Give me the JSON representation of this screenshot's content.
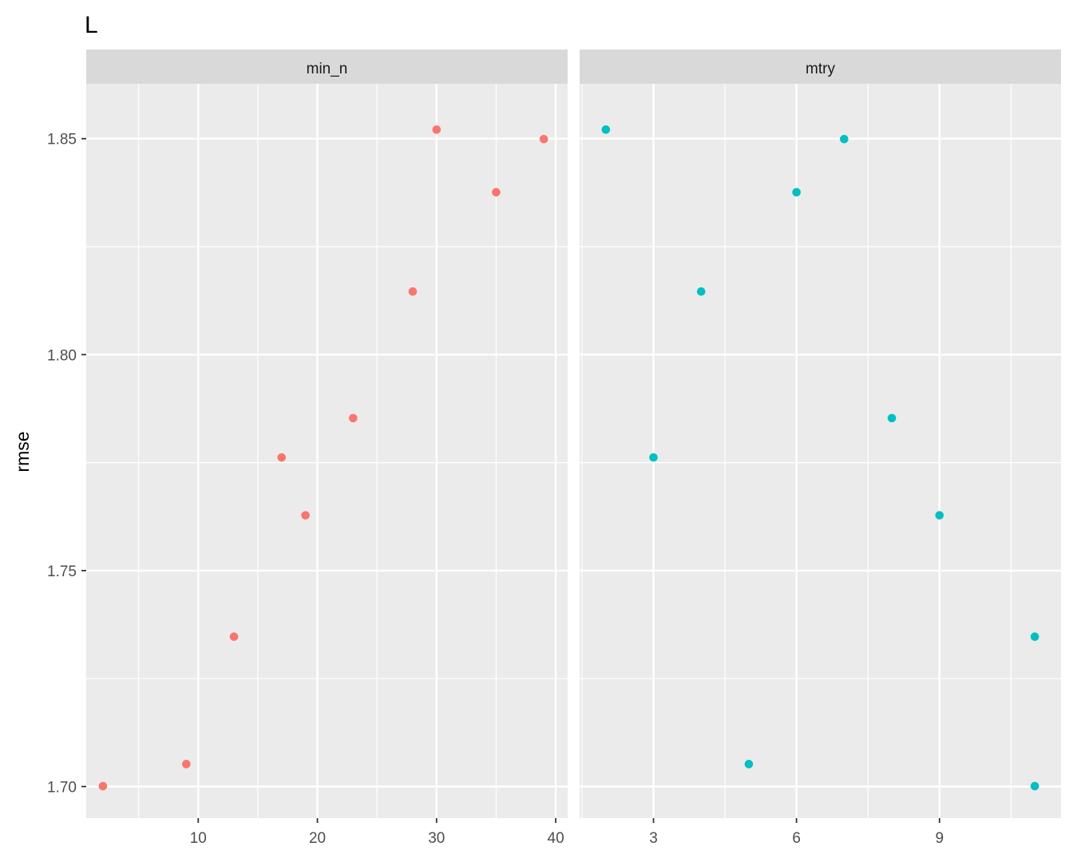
{
  "chart_data": {
    "type": "scatter",
    "title": "L",
    "ylabel": "rmse",
    "xlabel": "",
    "y_ticks": [
      "1.70",
      "1.75",
      "1.80",
      "1.85"
    ],
    "ylim": [
      1.6927,
      1.8627
    ],
    "grid": true,
    "legend": "none",
    "panels": [
      {
        "strip": "min_n",
        "color": "#F8766D",
        "xlim": [
          0.6,
          41.0
        ],
        "x_ticks": [
          10,
          20,
          30,
          40
        ],
        "points": [
          {
            "x": 2,
            "y": 1.7001
          },
          {
            "x": 9,
            "y": 1.7052
          },
          {
            "x": 13,
            "y": 1.7347
          },
          {
            "x": 17,
            "y": 1.7762
          },
          {
            "x": 19,
            "y": 1.7628
          },
          {
            "x": 23,
            "y": 1.7853
          },
          {
            "x": 28,
            "y": 1.8146
          },
          {
            "x": 30,
            "y": 1.8521
          },
          {
            "x": 35,
            "y": 1.8376
          },
          {
            "x": 39,
            "y": 1.8499
          }
        ]
      },
      {
        "strip": "mtry",
        "color": "#00BFC4",
        "xlim": [
          1.45,
          11.55
        ],
        "x_ticks": [
          3,
          6,
          9
        ],
        "points": [
          {
            "x": 2,
            "y": 1.8521
          },
          {
            "x": 3,
            "y": 1.7762
          },
          {
            "x": 4,
            "y": 1.8146
          },
          {
            "x": 5,
            "y": 1.7052
          },
          {
            "x": 6,
            "y": 1.8376
          },
          {
            "x": 7,
            "y": 1.8499
          },
          {
            "x": 8,
            "y": 1.7853
          },
          {
            "x": 9,
            "y": 1.7628
          },
          {
            "x": 11,
            "y": 1.7347
          },
          {
            "x": 11,
            "y": 1.7001
          }
        ]
      }
    ]
  }
}
